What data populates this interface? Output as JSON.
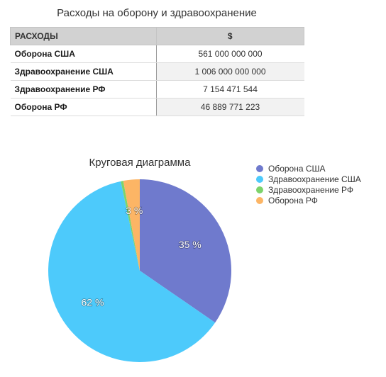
{
  "table": {
    "title": "Расходы на оборону и здравоохранение",
    "headers": [
      "РАСХОДЫ",
      "$"
    ],
    "rows": [
      {
        "label": "Оборона США",
        "value": "561 000 000 000"
      },
      {
        "label": "Здравоохранение США",
        "value": "1 006 000 000 000"
      },
      {
        "label": "Здравоохранение РФ",
        "value": "7 154 471 544"
      },
      {
        "label": "Оборона РФ",
        "value": "46 889 771 223"
      }
    ]
  },
  "chart_data": {
    "type": "pie",
    "title": "Круговая диаграмма",
    "categories": [
      "Оборона США",
      "Здравоохранение США",
      "Здравоохранение РФ",
      "Оборона РФ"
    ],
    "values": [
      561000000000,
      1006000000000,
      7154471544,
      46889771223
    ],
    "data_labels": [
      "35 %",
      "62 %",
      "",
      "3 %"
    ],
    "colors": [
      "#6f7acd",
      "#4dcafb",
      "#7dd36b",
      "#fcb565"
    ],
    "legend_position": "right"
  }
}
